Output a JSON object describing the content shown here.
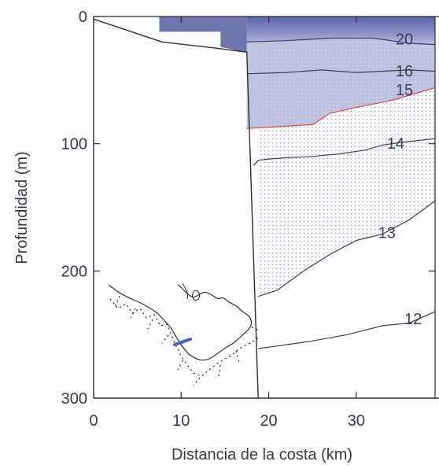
{
  "chart_data": {
    "type": "contour",
    "xlabel": "Distancia de la costa (km)",
    "ylabel": "Profundidad (m)",
    "xlim": [
      0,
      39
    ],
    "ylim": [
      300,
      0
    ],
    "x_ticks": [
      0,
      10,
      20,
      30
    ],
    "x_tick_labels": [
      "0",
      "10",
      "20",
      "30"
    ],
    "y_ticks": [
      0,
      100,
      200,
      300
    ],
    "y_tick_labels": [
      "0",
      "100",
      "200",
      "300"
    ],
    "y_inverted": true,
    "contours": [
      {
        "level": "20",
        "label": "20",
        "color": "#3d3f55",
        "points": [
          [
            17.5,
            20
          ],
          [
            22,
            19
          ],
          [
            27,
            17
          ],
          [
            32,
            17
          ],
          [
            36,
            21
          ],
          [
            39,
            22
          ]
        ],
        "label_at": [
          34.5,
          22
        ]
      },
      {
        "level": "16",
        "label": "16",
        "color": "#3d3f55",
        "points": [
          [
            17.5,
            45
          ],
          [
            22,
            44
          ],
          [
            26,
            42
          ],
          [
            30,
            44
          ],
          [
            33,
            43
          ],
          [
            36,
            42
          ],
          [
            39,
            43
          ]
        ],
        "label_at": [
          34.5,
          47
        ]
      },
      {
        "level": "15",
        "label": "15",
        "color": "#d24a4a",
        "points": [
          [
            17.5,
            88
          ],
          [
            20,
            87
          ],
          [
            25,
            85
          ],
          [
            27,
            76
          ],
          [
            29,
            73
          ],
          [
            31,
            70
          ],
          [
            34,
            66
          ],
          [
            39,
            56
          ]
        ],
        "label_at": [
          34.5,
          62
        ]
      },
      {
        "level": "14",
        "label": "14",
        "color": "#3d3f55",
        "points": [
          [
            18.3,
            117
          ],
          [
            18.8,
            113
          ],
          [
            20,
            112
          ],
          [
            22,
            111
          ],
          [
            25,
            110
          ],
          [
            28,
            108
          ],
          [
            31,
            105
          ],
          [
            33,
            101
          ],
          [
            35,
            99
          ],
          [
            39,
            96
          ]
        ],
        "label_at": [
          33.5,
          104
        ]
      },
      {
        "level": "13",
        "label": "13",
        "color": "#3d3f55",
        "points": [
          [
            18.8,
            220
          ],
          [
            21,
            215
          ],
          [
            24,
            200
          ],
          [
            27,
            187
          ],
          [
            30,
            176
          ],
          [
            33,
            171
          ],
          [
            36,
            160
          ],
          [
            39,
            145
          ]
        ],
        "label_at": [
          32.5,
          174
        ]
      },
      {
        "level": "12",
        "label": "12",
        "color": "#3d3f55",
        "points": [
          [
            18.8,
            261
          ],
          [
            21,
            259
          ],
          [
            25,
            255
          ],
          [
            29,
            250
          ],
          [
            33,
            243
          ],
          [
            36,
            241
          ],
          [
            39,
            232
          ]
        ],
        "label_at": [
          35.5,
          242
        ]
      }
    ],
    "shading": {
      "warm_color": "#6d76ad",
      "mid_color": "#aeb1d8",
      "dot_color": "#b9bde2"
    },
    "coast_line": [
      [
        0,
        2
      ],
      [
        7.8,
        20
      ],
      [
        14.2,
        25
      ],
      [
        17.5,
        28
      ],
      [
        18.8,
        300
      ]
    ],
    "inset_map": {
      "section_line_color": "#4a62c8",
      "description": "location map of coastline with transect"
    }
  }
}
